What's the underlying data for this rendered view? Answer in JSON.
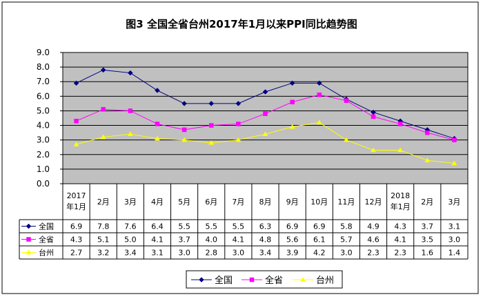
{
  "chart_data": {
    "type": "line",
    "title": "图3  全国全省台州2017年1月以来PPI同比趋势图",
    "categories": [
      [
        "2017",
        "年1月"
      ],
      [
        "2月"
      ],
      [
        "3月"
      ],
      [
        "4月"
      ],
      [
        "5月"
      ],
      [
        "6月"
      ],
      [
        "7月"
      ],
      [
        "8月"
      ],
      [
        "9月"
      ],
      [
        "10月"
      ],
      [
        "11月"
      ],
      [
        "12月"
      ],
      [
        "2018",
        "年1月"
      ],
      [
        "2月"
      ],
      [
        "3月"
      ]
    ],
    "ylim": [
      0,
      9
    ],
    "yticks": [
      "0.0",
      "1.0",
      "2.0",
      "3.0",
      "4.0",
      "5.0",
      "6.0",
      "7.0",
      "8.0",
      "9.0"
    ],
    "grid": true,
    "plot_background": "#c0c0c0",
    "legend_position": "bottom",
    "series": [
      {
        "name": "全国",
        "color": "#000080",
        "marker": "diamond",
        "values": [
          6.9,
          7.8,
          7.6,
          6.4,
          5.5,
          5.5,
          5.5,
          6.3,
          6.9,
          6.9,
          5.8,
          4.9,
          4.3,
          3.7,
          3.1
        ],
        "labels": [
          "6.9",
          "7.8",
          "7.6",
          "6.4",
          "5.5",
          "5.5",
          "5.5",
          "6.3",
          "6.9",
          "6.9",
          "5.8",
          "4.9",
          "4.3",
          "3.7",
          "3.1"
        ]
      },
      {
        "name": "全省",
        "color": "#ff00ff",
        "marker": "square",
        "values": [
          4.3,
          5.1,
          5.0,
          4.1,
          3.7,
          4.0,
          4.1,
          4.8,
          5.6,
          6.1,
          5.7,
          4.6,
          4.1,
          3.5,
          3.0
        ],
        "labels": [
          "4.3",
          "5.1",
          "5.0",
          "4.1",
          "3.7",
          "4.0",
          "4.1",
          "4.8",
          "5.6",
          "6.1",
          "5.7",
          "4.6",
          "4.1",
          "3.5",
          "3.0"
        ]
      },
      {
        "name": "台州",
        "color": "#ffff00",
        "marker": "triangle",
        "values": [
          2.7,
          3.2,
          3.4,
          3.1,
          3.0,
          2.8,
          3.0,
          3.4,
          3.9,
          4.2,
          3.0,
          2.3,
          2.3,
          1.6,
          1.4
        ],
        "labels": [
          "2.7",
          "3.2",
          "3.4",
          "3.1",
          "3.0",
          "2.8",
          "3.0",
          "3.4",
          "3.9",
          "4.2",
          "3.0",
          "2.3",
          "2.3",
          "1.6",
          "1.4"
        ]
      }
    ]
  }
}
